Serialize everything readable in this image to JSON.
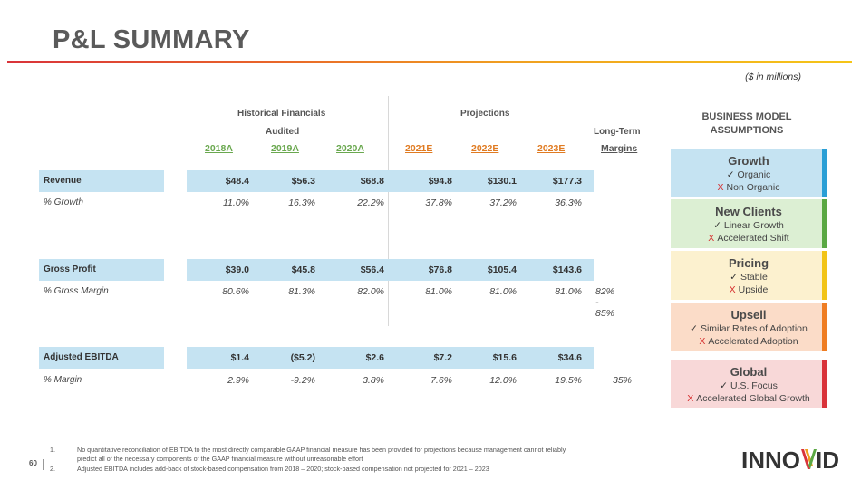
{
  "title": "P&L SUMMARY",
  "units_note": "($ in millions)",
  "header": {
    "historical": "Historical Financials",
    "audited": "Audited",
    "projections": "Projections",
    "long_term": "Long-Term",
    "margins": "Margins",
    "years": [
      "2018A",
      "2019A",
      "2020A",
      "2021E",
      "2022E",
      "2023E"
    ]
  },
  "rows": [
    {
      "label": "Revenue",
      "values": [
        "$48.4",
        "$56.3",
        "$68.8",
        "$94.8",
        "$130.1",
        "$177.3"
      ],
      "long_term": ""
    },
    {
      "label": "% Growth",
      "values": [
        "11.0%",
        "16.3%",
        "22.2%",
        "37.8%",
        "37.2%",
        "36.3%"
      ],
      "long_term": ""
    },
    {
      "label": "Gross Profit",
      "values": [
        "$39.0",
        "$45.8",
        "$56.4",
        "$76.8",
        "$105.4",
        "$143.6"
      ],
      "long_term": ""
    },
    {
      "label": "% Gross Margin",
      "values": [
        "80.6%",
        "81.3%",
        "82.0%",
        "81.0%",
        "81.0%",
        "81.0%"
      ],
      "long_term": "82% - 85%"
    },
    {
      "label": "Adjusted EBITDA",
      "values": [
        "$1.4",
        "($5.2)",
        "$2.6",
        "$7.2",
        "$15.6",
        "$34.6"
      ],
      "long_term": ""
    },
    {
      "label": "% Margin",
      "values": [
        "2.9%",
        "-9.2%",
        "3.8%",
        "7.6%",
        "12.0%",
        "19.5%"
      ],
      "long_term": "35%"
    }
  ],
  "assumptions": {
    "title": "BUSINESS MODEL ASSUMPTIONS",
    "cards": [
      {
        "title": "Growth",
        "check": "Organic",
        "cross": "Non Organic",
        "bg": "#c5e3f2",
        "accent": "#2a9fd6"
      },
      {
        "title": "New Clients",
        "check": "Linear Growth",
        "cross": "Accelerated Shift",
        "bg": "#dcefd3",
        "accent": "#5aa843"
      },
      {
        "title": "Pricing",
        "check": "Stable",
        "cross": "Upside",
        "bg": "#fcf1cf",
        "accent": "#f2c417"
      },
      {
        "title": "Upsell",
        "check": "Similar Rates of Adoption",
        "cross": "Accelerated Adoption",
        "bg": "#fbdcc8",
        "accent": "#ef7d22"
      },
      {
        "title": "Global",
        "check": "U.S. Focus",
        "cross": "Accelerated Global Growth",
        "bg": "#f8d8d8",
        "accent": "#d9333a"
      }
    ],
    "check_mark": "✓",
    "cross_mark": "X"
  },
  "footnotes": [
    {
      "num": "1.",
      "text": "No quantitative reconciliation of EBITDA to the most directly comparable GAAP financial measure has been provided for projections because management cannot reliably predict all of the necessary components of the GAAP financial measure without unreasonable effort"
    },
    {
      "num": "2.",
      "text": "Adjusted EBITDA includes add-back of stock-based compensation from 2018 – 2020; stock-based compensation not projected for 2021 – 2023"
    }
  ],
  "page_number": "60",
  "logo_text": "INNOVID"
}
